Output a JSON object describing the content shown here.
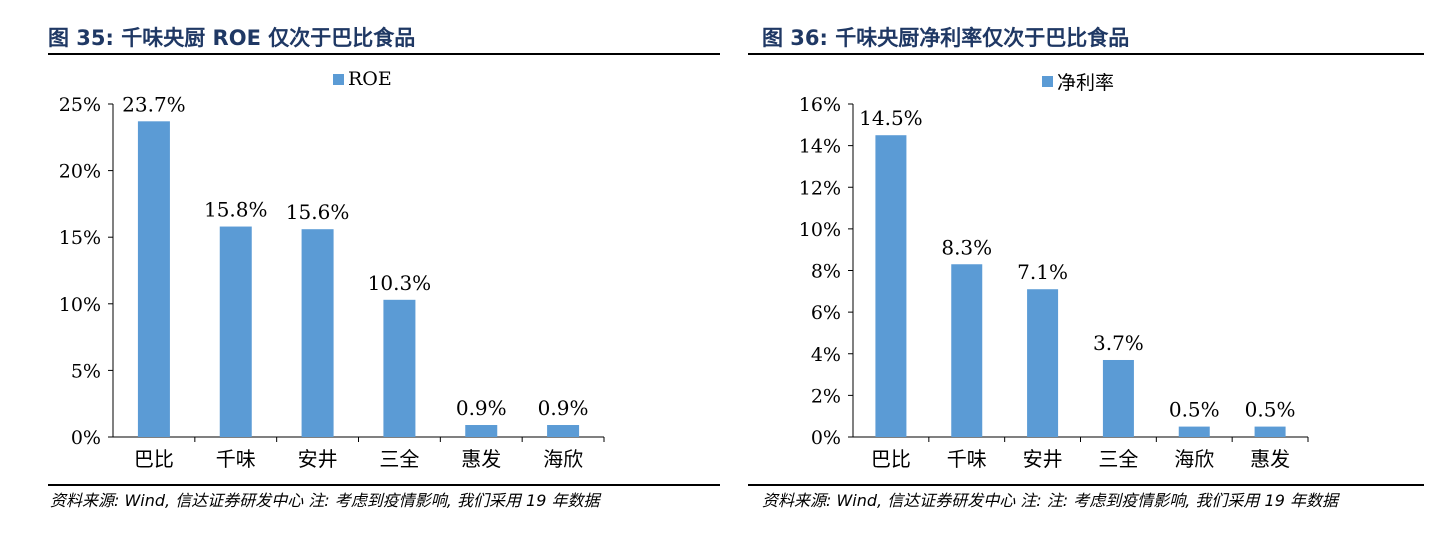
{
  "colors": {
    "bar": "#5b9bd5",
    "title": "#1f3864"
  },
  "left": {
    "figure_title": "图 35: 千味央厨 ROE 仅次于巴比食品",
    "legend_label": "ROE",
    "source_note": "资料来源: Wind, 信达证券研发中心  注: 考虑到疫情影响, 我们采用 19 年数据",
    "chart_data": {
      "type": "bar",
      "categories": [
        "巴比",
        "千味",
        "安井",
        "三全",
        "惠发",
        "海欣"
      ],
      "series": [
        {
          "name": "ROE",
          "values": [
            23.7,
            15.8,
            15.6,
            10.3,
            0.9,
            0.9
          ]
        }
      ],
      "data_labels": [
        "23.7%",
        "15.8%",
        "15.6%",
        "10.3%",
        "0.9%",
        "0.9%"
      ],
      "y_ticks": [
        "0%",
        "5%",
        "10%",
        "15%",
        "20%",
        "25%"
      ],
      "ylim": [
        0,
        25
      ],
      "legend_position": "top-center"
    }
  },
  "right": {
    "figure_title": "图 36: 千味央厨净利率仅次于巴比食品",
    "legend_label": "净利率",
    "source_note": "资料来源: Wind, 信达证券研发中心 注: 注: 考虑到疫情影响, 我们采用 19 年数据",
    "chart_data": {
      "type": "bar",
      "categories": [
        "巴比",
        "千味",
        "安井",
        "三全",
        "海欣",
        "惠发"
      ],
      "series": [
        {
          "name": "净利率",
          "values": [
            14.5,
            8.3,
            7.1,
            3.7,
            0.5,
            0.5
          ]
        }
      ],
      "data_labels": [
        "14.5%",
        "8.3%",
        "7.1%",
        "3.7%",
        "0.5%",
        "0.5%"
      ],
      "y_ticks": [
        "0%",
        "2%",
        "4%",
        "6%",
        "8%",
        "10%",
        "12%",
        "14%",
        "16%"
      ],
      "ylim": [
        0,
        16
      ],
      "legend_position": "top-center"
    }
  }
}
